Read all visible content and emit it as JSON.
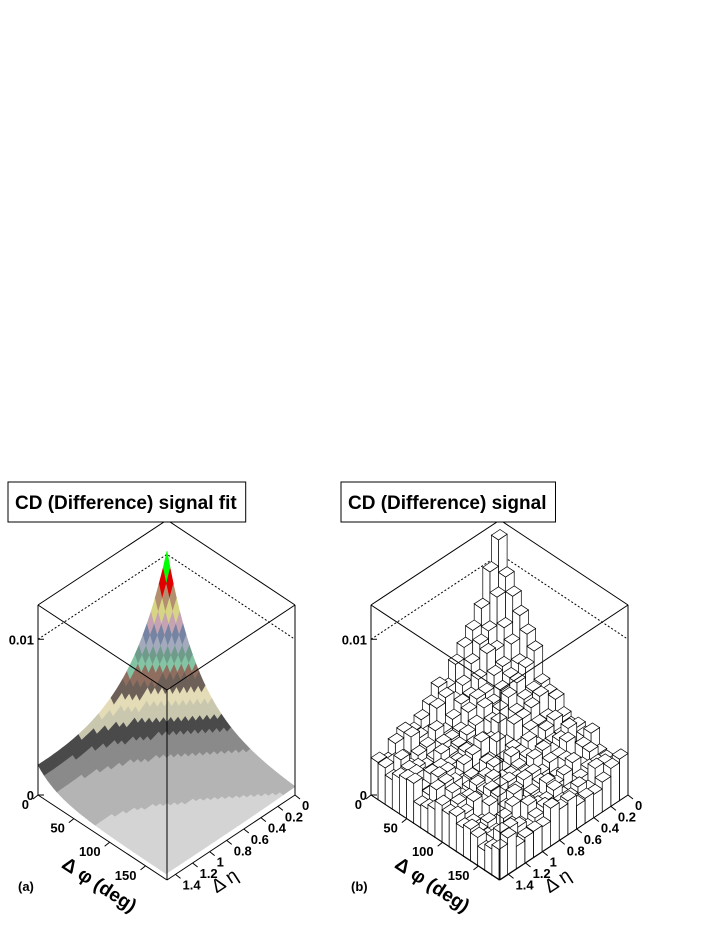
{
  "chart_data": [
    {
      "type": "surface",
      "title": "CD (Difference) signal fit",
      "tag": "(a)",
      "x_label": "Δ φ (deg)",
      "y_label": "Δ η",
      "xlim": [
        0,
        180
      ],
      "xticks": [
        0,
        50,
        100,
        150
      ],
      "ylim": [
        0,
        1.5
      ],
      "yticks": [
        0,
        0.2,
        0.4,
        0.6,
        0.8,
        1,
        1.2,
        1.4
      ],
      "zlim": [
        0,
        0.0122
      ],
      "zticks": [
        0,
        0.01
      ]
    },
    {
      "type": "lego",
      "title": "CD (Difference) signal",
      "tag": "(b)",
      "x_label": "Δ φ (deg)",
      "y_label": "Δ η",
      "xlim": [
        0,
        180
      ],
      "xticks": [
        0,
        50,
        100,
        150
      ],
      "ylim": [
        0,
        1.5
      ],
      "yticks": [
        0,
        0.2,
        0.4,
        0.6,
        0.8,
        1,
        1.2,
        1.4
      ],
      "zlim": [
        0,
        0.0122
      ],
      "zticks": [
        0,
        0.01
      ]
    }
  ]
}
